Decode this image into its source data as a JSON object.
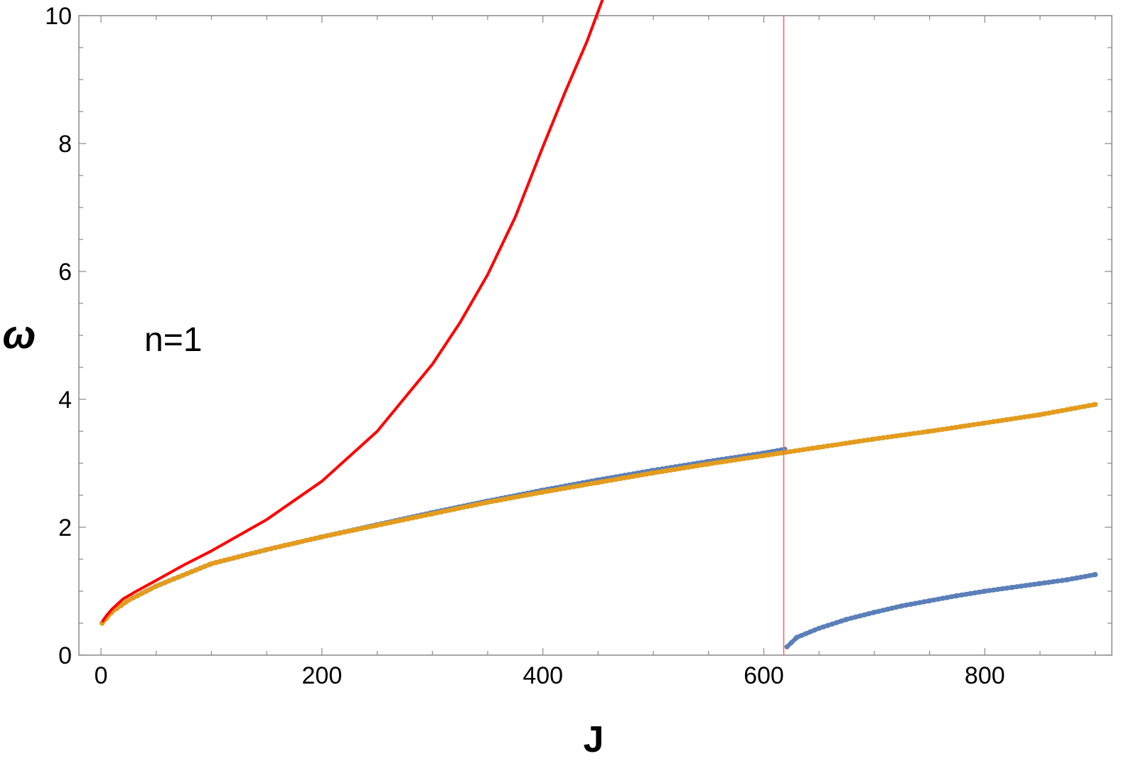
{
  "chart_data": {
    "type": "line",
    "xlabel": "J",
    "ylabel": "ω",
    "xlim": [
      -20,
      915
    ],
    "ylim": [
      0,
      10
    ],
    "x_ticks": [
      "0",
      "200",
      "400",
      "600",
      "800"
    ],
    "y_ticks": [
      "0",
      "2",
      "4",
      "6",
      "8",
      "10"
    ],
    "grid": false,
    "annotation": "n=1",
    "vertical_line": {
      "x": 618,
      "color": "#f06a6a"
    },
    "colors": {
      "red": "#ff0000",
      "orange": "#e39c1e",
      "blue": "#5b7fb8"
    },
    "series": [
      {
        "style": "line",
        "color": "#ff0000",
        "x": [
          1,
          5,
          10,
          20,
          30,
          50,
          75,
          100,
          150,
          200,
          250,
          300,
          325,
          350,
          375,
          400,
          420,
          440,
          455
        ],
        "y": [
          0.52,
          0.62,
          0.72,
          0.88,
          0.98,
          1.17,
          1.41,
          1.63,
          2.12,
          2.72,
          3.5,
          4.55,
          5.2,
          5.95,
          6.85,
          7.95,
          8.8,
          9.6,
          10.3
        ]
      },
      {
        "style": "points",
        "color": "#e39c1e",
        "x": [
          1,
          10,
          25,
          50,
          100,
          150,
          200,
          250,
          300,
          350,
          400,
          450,
          500,
          550,
          600,
          650,
          700,
          750,
          800,
          850,
          900
        ],
        "y": [
          0.5,
          0.68,
          0.86,
          1.08,
          1.43,
          1.65,
          1.85,
          2.03,
          2.21,
          2.39,
          2.55,
          2.7,
          2.85,
          2.99,
          3.12,
          3.25,
          3.38,
          3.5,
          3.63,
          3.76,
          3.92
        ]
      },
      {
        "style": "points",
        "color": "#5b7fb8",
        "x": [
          1,
          10,
          25,
          50,
          100,
          150,
          200,
          250,
          300,
          350,
          400,
          450,
          500,
          550,
          600,
          619
        ],
        "y": [
          0.5,
          0.68,
          0.86,
          1.08,
          1.43,
          1.65,
          1.85,
          2.04,
          2.23,
          2.41,
          2.58,
          2.74,
          2.89,
          3.03,
          3.16,
          3.22
        ]
      },
      {
        "style": "points",
        "color": "#5b7fb8",
        "x": [
          621,
          630,
          650,
          675,
          700,
          725,
          750,
          775,
          800,
          825,
          850,
          875,
          900
        ],
        "y": [
          0.13,
          0.28,
          0.42,
          0.56,
          0.67,
          0.77,
          0.85,
          0.93,
          1.0,
          1.06,
          1.12,
          1.18,
          1.26
        ]
      }
    ]
  }
}
